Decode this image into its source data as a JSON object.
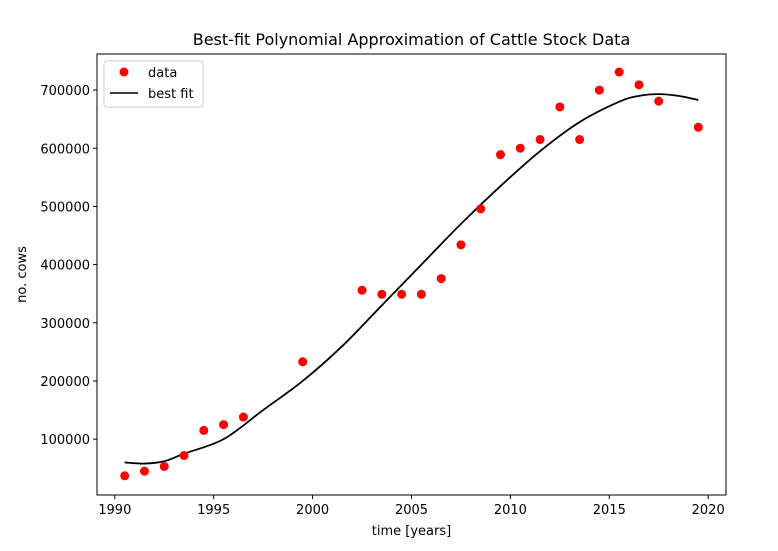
{
  "chart_data": {
    "type": "scatter",
    "title": "Best-fit Polynomial Approximation of Cattle Stock Data",
    "xlabel": "time [years]",
    "ylabel": "no. cows",
    "xlim": [
      1989.1,
      2020.9
    ],
    "ylim": [
      4000,
      762000
    ],
    "x_ticks": [
      1990,
      1995,
      2000,
      2005,
      2010,
      2015,
      2020
    ],
    "y_ticks": [
      100000,
      200000,
      300000,
      400000,
      500000,
      600000,
      700000
    ],
    "x_tick_labels": [
      "1990",
      "1995",
      "2000",
      "2005",
      "2010",
      "2015",
      "2020"
    ],
    "y_tick_labels": [
      "100000",
      "200000",
      "300000",
      "400000",
      "500000",
      "600000",
      "700000"
    ],
    "grid": false,
    "legend_position": "upper-left",
    "legend": [
      {
        "label": "data",
        "marker": "dot",
        "color": "#ff0000"
      },
      {
        "label": "best fit",
        "marker": "line",
        "color": "#000000"
      }
    ],
    "series": [
      {
        "name": "data",
        "kind": "scatter",
        "color": "#ff0000",
        "x": [
          1990.5,
          1991.5,
          1992.5,
          1993.5,
          1994.5,
          1995.5,
          1996.5,
          1999.5,
          2002.5,
          2003.5,
          2004.5,
          2005.5,
          2006.5,
          2007.5,
          2008.5,
          2009.5,
          2010.5,
          2011.5,
          2012.5,
          2013.5,
          2014.5,
          2015.5,
          2016.5,
          2017.5,
          2019.5
        ],
        "y": [
          37000,
          45000,
          53000,
          72000,
          115000,
          125000,
          138000,
          233000,
          356000,
          349000,
          349000,
          349000,
          376000,
          434000,
          496000,
          589000,
          600000,
          615000,
          671000,
          615000,
          700000,
          731000,
          709000,
          681000,
          636000
        ]
      },
      {
        "name": "best fit",
        "kind": "line",
        "color": "#000000",
        "x": [
          1990.5,
          1991.5,
          1992.5,
          1993.5,
          1995.5,
          1997.5,
          1999.5,
          2001.5,
          2003.5,
          2005.5,
          2007.5,
          2009.5,
          2011.5,
          2013.5,
          2015.5,
          2016.5,
          2017.5,
          2018.5,
          2019.5
        ],
        "y": [
          60000,
          58000,
          62000,
          75000,
          100000,
          150000,
          200000,
          260000,
          330000,
          400000,
          470000,
          535000,
          595000,
          645000,
          680000,
          690000,
          693000,
          690000,
          683000
        ]
      }
    ]
  }
}
